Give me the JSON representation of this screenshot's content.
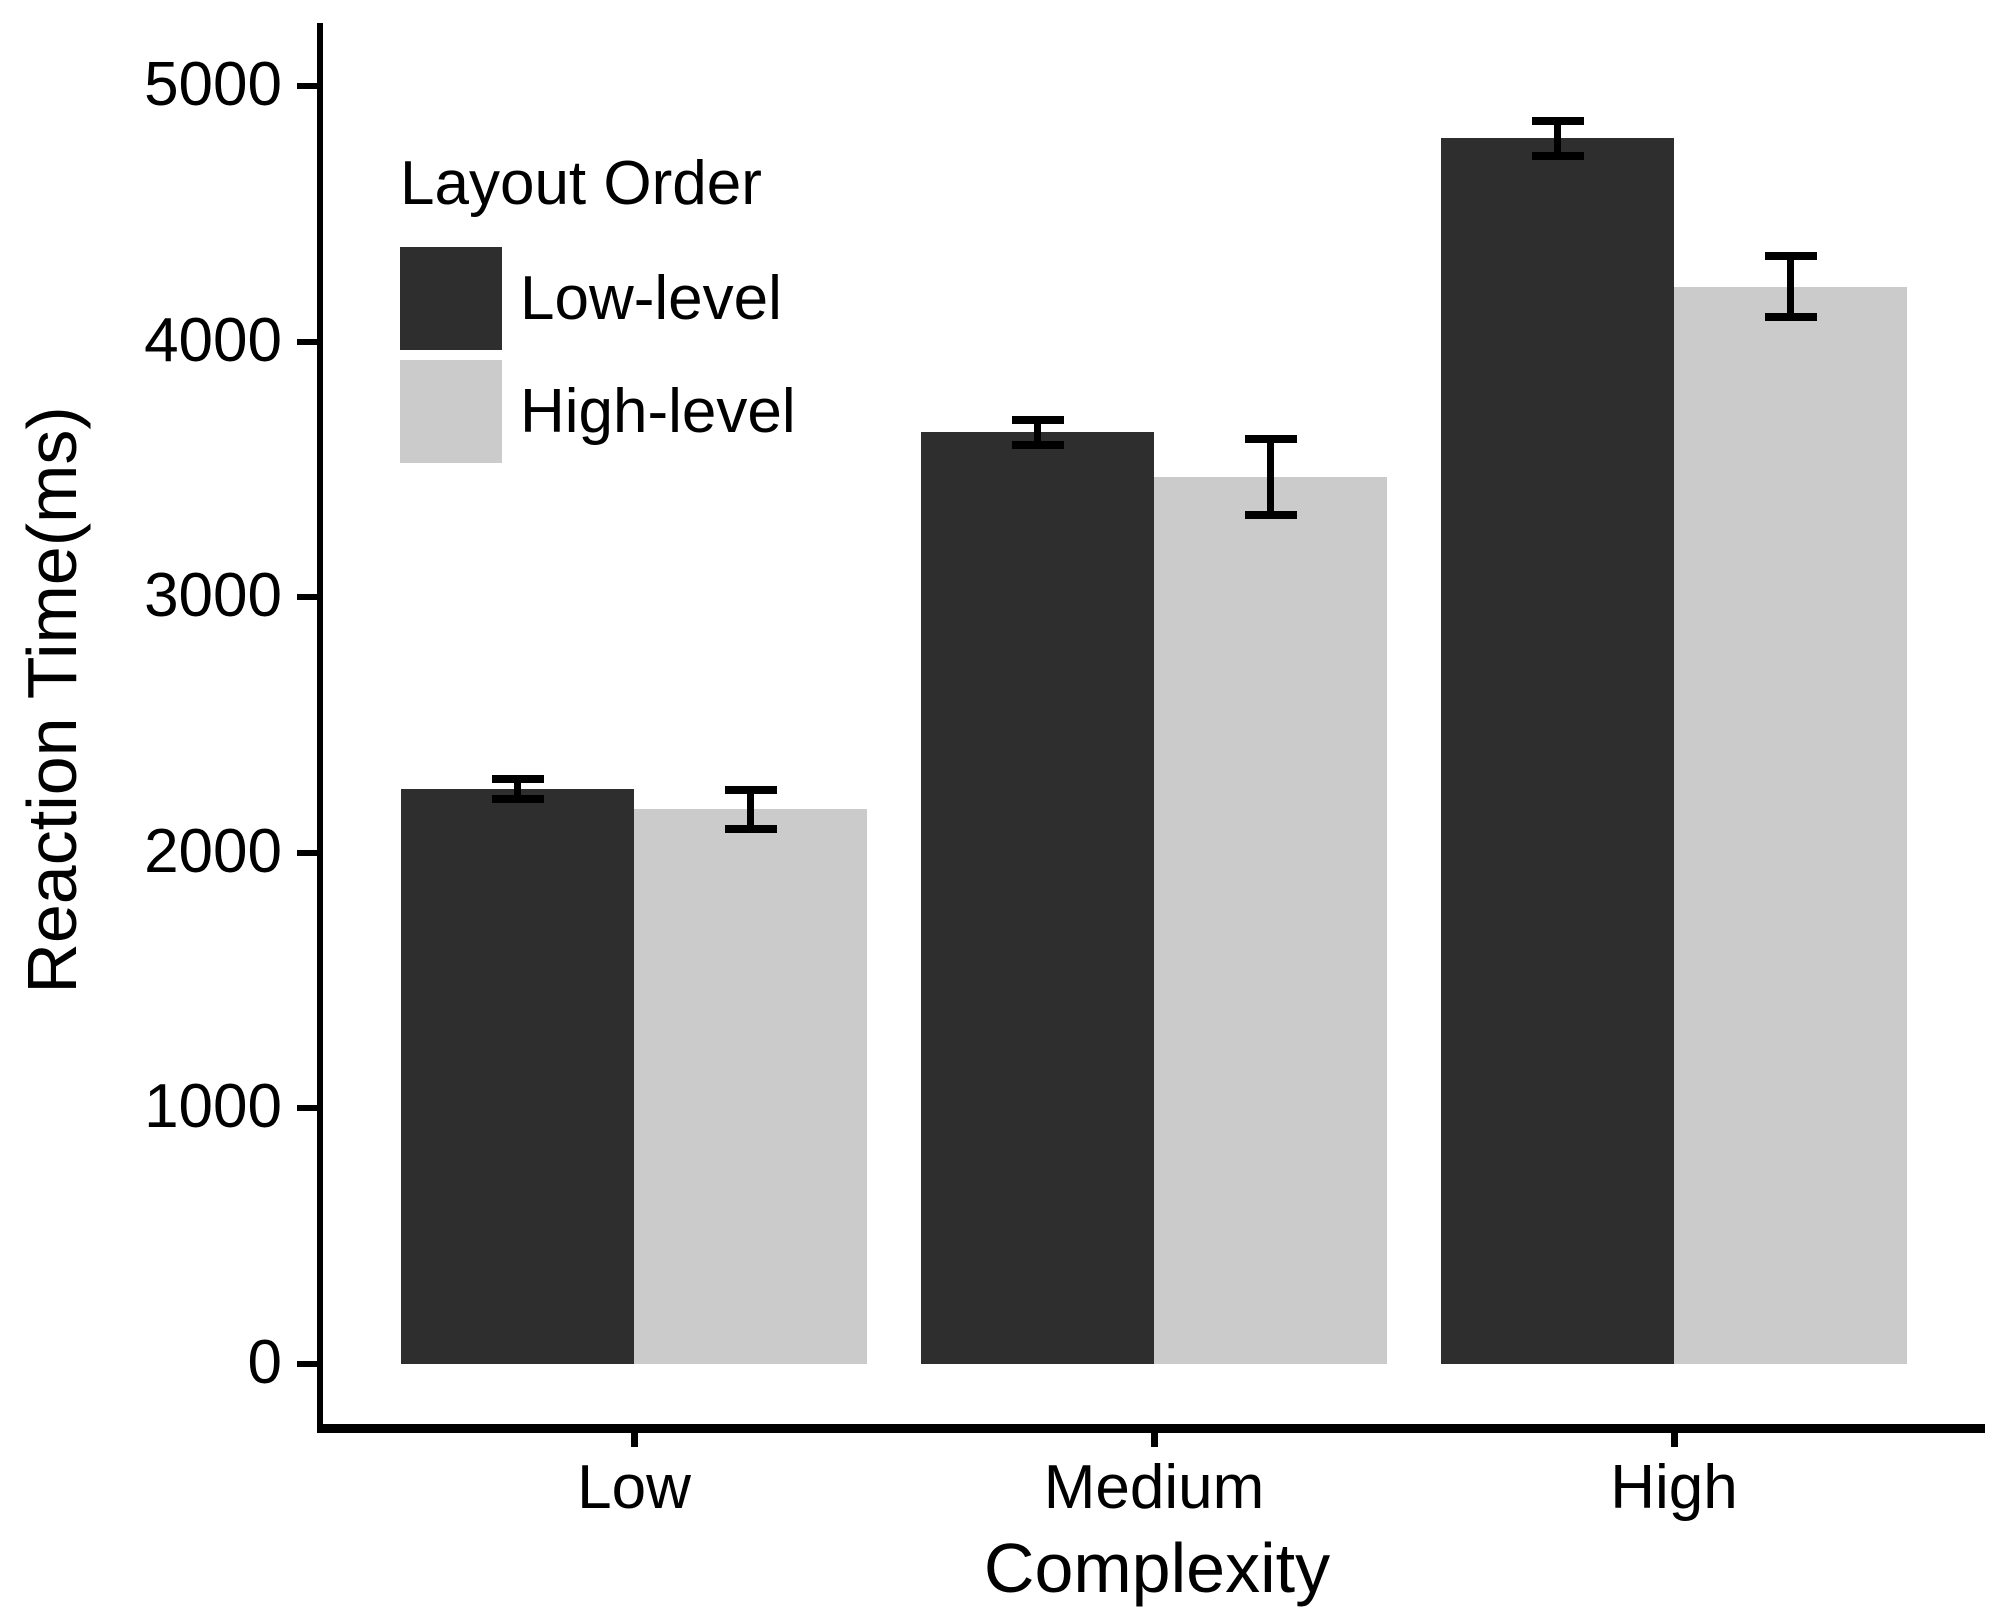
{
  "chart_data": {
    "type": "bar",
    "title": "",
    "xlabel": "Complexity",
    "ylabel": "Reaction Time(ms)",
    "legend_title": "Layout Order",
    "legend_position": "top-left-inside",
    "categories": [
      "Low",
      "Medium",
      "High"
    ],
    "y_ticks": [
      0,
      1000,
      2000,
      3000,
      4000,
      5000
    ],
    "ylim": [
      0,
      5000
    ],
    "grid": false,
    "error_bars": true,
    "series": [
      {
        "name": "Low-level",
        "color": "#2e2e2e",
        "values": [
          2250,
          3645,
          4795
        ],
        "errors": [
          40,
          50,
          70
        ]
      },
      {
        "name": "High-level",
        "color": "#cbcbcb",
        "values": [
          2170,
          3470,
          4215
        ],
        "errors": [
          75,
          150,
          120
        ]
      }
    ],
    "axis_color": "#000000",
    "text_color": "#000000",
    "background": "#ffffff"
  }
}
